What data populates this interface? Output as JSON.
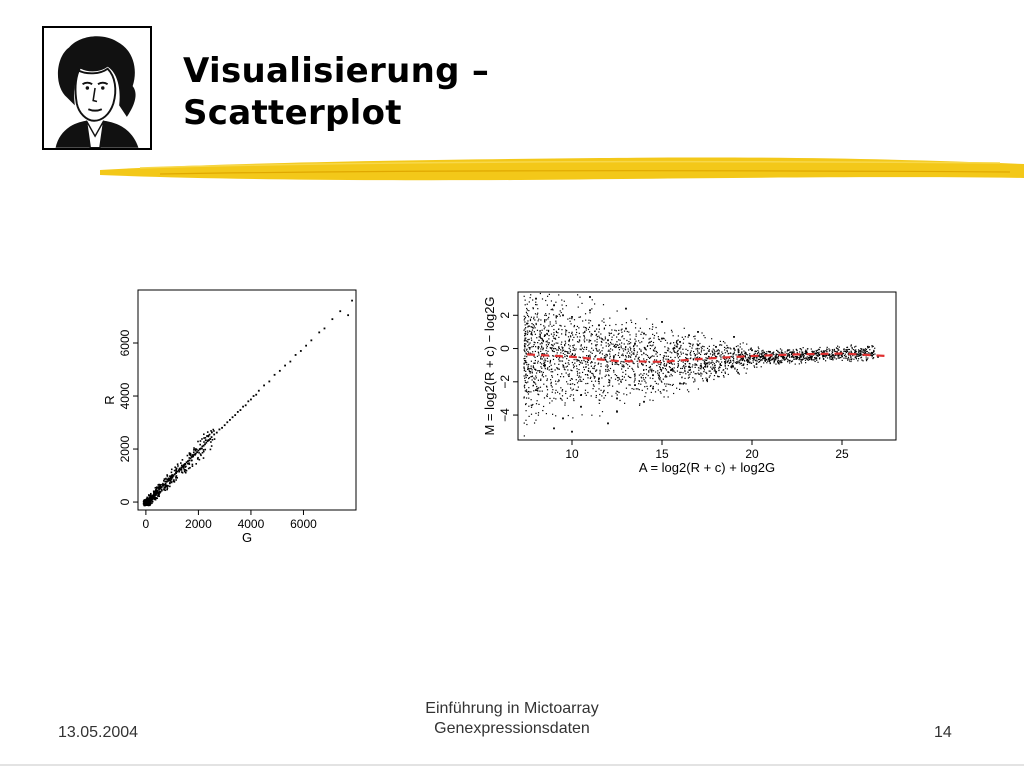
{
  "slide": {
    "title_line1": "Visualisierung –",
    "title_line2": "Scatterplot",
    "accent_color": "#f2c200",
    "logo_icon": "portrait-woodcut-icon"
  },
  "footer": {
    "date": "13.05.2004",
    "title_line1": "Einführung in Mictoarray",
    "title_line2": "Genexpressionsdaten",
    "page": "14"
  },
  "chart_data": [
    {
      "type": "scatter",
      "title": "",
      "xlabel": "G",
      "ylabel": "R",
      "xlim": [
        -300,
        8000
      ],
      "ylim": [
        -300,
        8000
      ],
      "x_ticks": [
        0,
        2000,
        4000,
        6000
      ],
      "y_ticks": [
        0,
        2000,
        4000,
        6000
      ],
      "x_tick_labels": [
        "0",
        "2000",
        "4000",
        "6000"
      ],
      "y_tick_labels": [
        "0",
        "2000",
        "4000",
        "6000"
      ],
      "grid": false,
      "legend": "none",
      "point_color": "#000000",
      "series": [
        {
          "x": [
            40,
            80,
            120,
            150,
            200,
            250,
            300,
            350,
            400,
            450,
            500,
            550,
            600,
            650,
            700,
            750,
            800,
            850,
            900,
            950,
            1000,
            1050,
            1100,
            1150,
            1200,
            1250,
            1300,
            1350,
            1400,
            1450,
            1500,
            1550,
            1600,
            1650,
            1700,
            1750,
            1800,
            1850,
            1900,
            1950,
            2000,
            2050,
            2100,
            2150,
            2200,
            2250,
            2300,
            2350,
            2400,
            2450,
            2500,
            2600,
            2700,
            2800,
            2900,
            3000,
            3100,
            3200,
            3300,
            3400,
            3500,
            3600,
            3700,
            3800,
            3900,
            4000,
            4100,
            4200,
            4300,
            4500,
            4700,
            4900,
            5100,
            5300,
            5500,
            5700,
            5900,
            6100,
            6300,
            6600,
            6800,
            7100,
            7400,
            7700,
            7850
          ],
          "y": [
            20,
            60,
            110,
            140,
            190,
            230,
            270,
            330,
            380,
            420,
            480,
            510,
            560,
            620,
            650,
            700,
            770,
            800,
            850,
            900,
            940,
            1010,
            1050,
            1090,
            1150,
            1200,
            1230,
            1300,
            1330,
            1390,
            1440,
            1500,
            1540,
            1570,
            1650,
            1700,
            1720,
            1800,
            1830,
            1880,
            1940,
            1990,
            2020,
            2100,
            2130,
            2180,
            2240,
            2300,
            2330,
            2380,
            2450,
            2550,
            2620,
            2740,
            2800,
            2900,
            3010,
            3100,
            3200,
            3280,
            3400,
            3470,
            3600,
            3650,
            3800,
            3870,
            4000,
            4050,
            4200,
            4400,
            4550,
            4800,
            4950,
            5150,
            5300,
            5550,
            5700,
            5900,
            6100,
            6400,
            6550,
            6900,
            7200,
            7050,
            7600
          ]
        }
      ]
    },
    {
      "type": "scatter",
      "title": "",
      "xlabel": "A = log2(R + c) + log2G",
      "ylabel": "M = log2(R + c) − log2G",
      "xlim": [
        7,
        28
      ],
      "ylim": [
        -5.5,
        3.4
      ],
      "x_ticks": [
        10,
        15,
        20,
        25
      ],
      "y_ticks": [
        -4,
        -2,
        0,
        2
      ],
      "x_tick_labels": [
        "10",
        "15",
        "20",
        "25"
      ],
      "y_tick_labels": [
        "−4",
        "−2",
        "0",
        "2"
      ],
      "grid": false,
      "legend": "none",
      "point_color": "#000000",
      "series": [
        {
          "x": [
            7.5,
            8,
            8.5,
            9,
            9.5,
            10,
            10.5,
            11,
            11.5,
            12,
            12.5,
            13,
            13.5,
            14,
            14.5,
            15,
            15.5,
            16,
            16.5,
            17,
            17.5,
            18,
            18.5,
            19,
            19.5,
            20,
            20.5,
            21,
            21.5,
            22,
            22.5,
            23,
            23.5,
            24,
            24.5,
            25,
            25.5,
            26,
            27,
            8,
            9,
            10,
            11,
            12,
            13,
            14,
            15,
            16,
            17,
            18,
            19,
            8.5,
            9.5,
            10.5,
            11.5,
            12.5,
            13.5,
            14.5,
            15.5,
            16.5,
            17.5
          ],
          "y": [
            1.5,
            -2.5,
            0.8,
            2.6,
            -4.2,
            1.9,
            -3.5,
            2.3,
            -1.8,
            0.5,
            -3.0,
            1.2,
            -2.2,
            0.9,
            -1.6,
            0.6,
            -1.3,
            0.4,
            -1.1,
            0.2,
            -0.9,
            0.1,
            -0.8,
            0.0,
            -0.6,
            -0.1,
            -0.5,
            -0.2,
            -0.4,
            -0.1,
            -0.5,
            -0.2,
            -0.3,
            -0.2,
            -0.4,
            -0.3,
            -0.3,
            -0.4,
            -0.5,
            3.0,
            -4.8,
            -5.0,
            3.1,
            -4.5,
            2.4,
            -3.2,
            1.6,
            -2.1,
            1.0,
            -1.4,
            0.7,
            -1.0,
            2.0,
            -2.8,
            1.4,
            -3.8,
            0.3,
            -2.4,
            -0.8,
            0.8,
            -1.9
          ]
        },
        {
          "name": "",
          "type": "line",
          "style": "dashed",
          "color": "#e03030",
          "x": [
            7.5,
            10,
            12.5,
            15,
            17.5,
            20,
            22.5,
            25,
            27.5
          ],
          "y": [
            -0.35,
            -0.5,
            -0.75,
            -0.8,
            -0.6,
            -0.45,
            -0.35,
            -0.3,
            -0.45
          ]
        }
      ]
    }
  ]
}
